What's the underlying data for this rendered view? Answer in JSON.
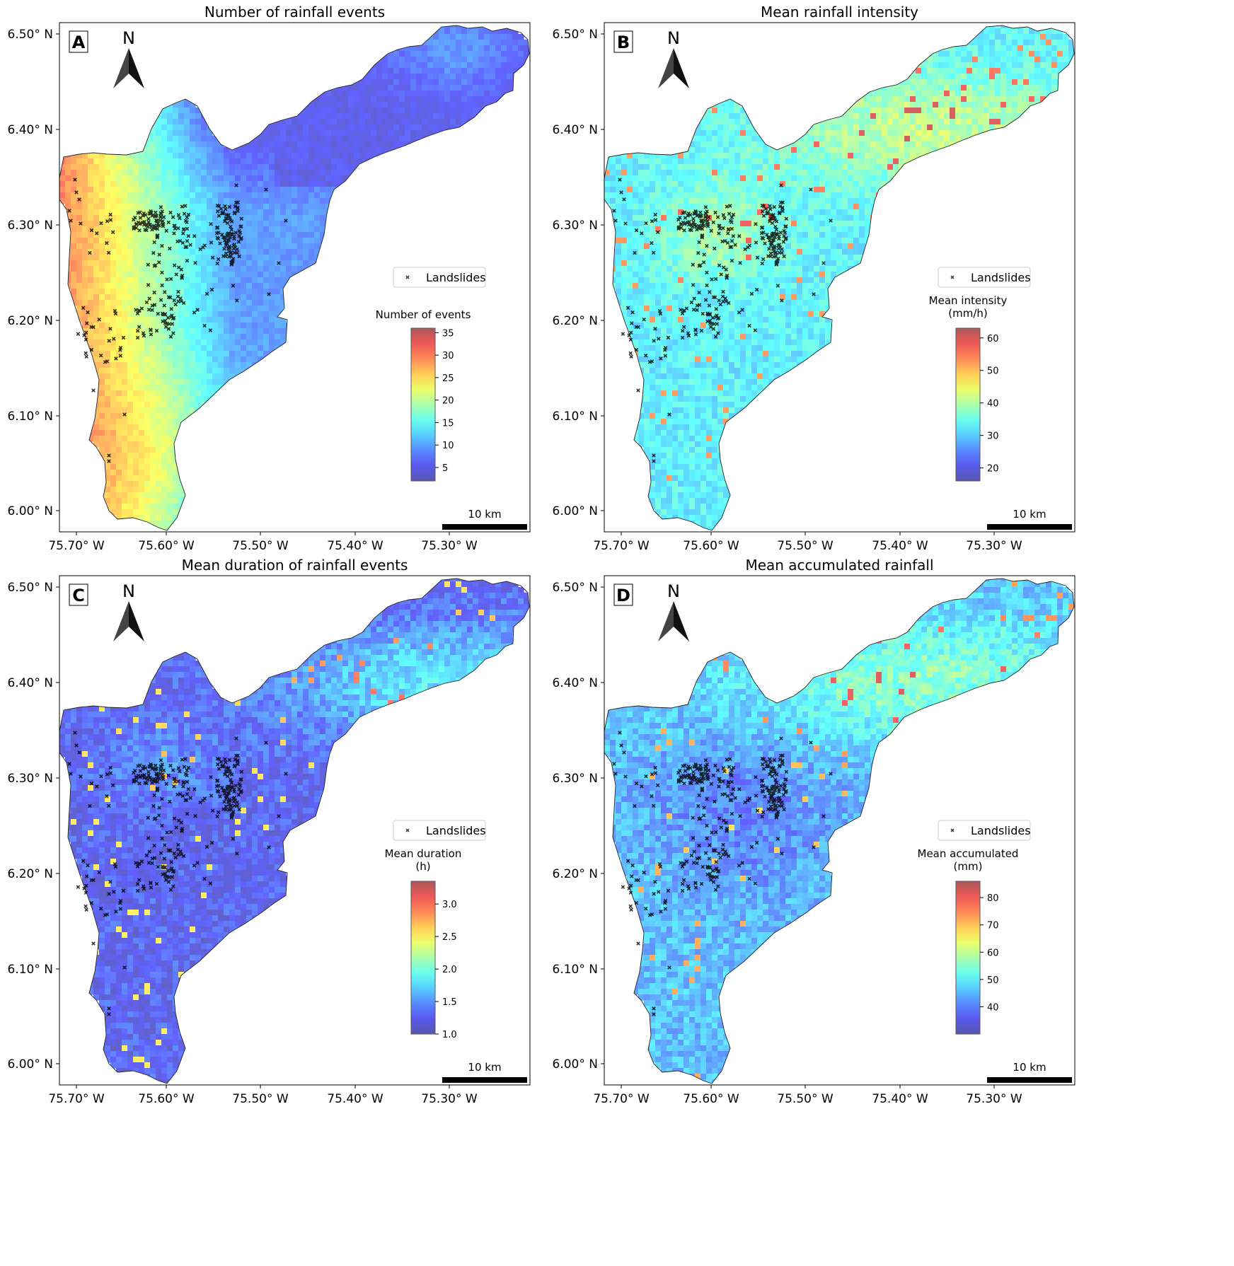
{
  "panels": [
    {
      "letter": "A",
      "title": "Number of rainfall events",
      "legend_label": "Landslides",
      "colorbar_title_lines": [
        "Number of events"
      ],
      "colorbar_ticks": [
        "5",
        "10",
        "15",
        "20",
        "25",
        "30",
        "35"
      ],
      "colorbar_range": [
        2,
        36
      ],
      "scale_label": "10 km",
      "north_label": "N",
      "field": "events"
    },
    {
      "letter": "B",
      "title": "Mean rainfall intensity",
      "legend_label": "Landslides",
      "colorbar_title_lines": [
        "Mean intensity",
        "(mm/h)"
      ],
      "colorbar_ticks": [
        "20",
        "30",
        "40",
        "50",
        "60"
      ],
      "colorbar_range": [
        16,
        63
      ],
      "scale_label": "10 km",
      "north_label": "N",
      "field": "intensity"
    },
    {
      "letter": "C",
      "title": "Mean duration of rainfall events",
      "legend_label": "Landslides",
      "colorbar_title_lines": [
        "Mean duration",
        "(h)"
      ],
      "colorbar_ticks": [
        "1.0",
        "1.5",
        "2.0",
        "2.5",
        "3.0"
      ],
      "colorbar_range": [
        1.0,
        3.35
      ],
      "scale_label": "10 km",
      "north_label": "N",
      "field": "duration"
    },
    {
      "letter": "D",
      "title": "Mean accumulated rainfall",
      "legend_label": "Landslides",
      "colorbar_title_lines": [
        "Mean accumulated",
        "(mm)"
      ],
      "colorbar_ticks": [
        "40",
        "50",
        "60",
        "70",
        "80"
      ],
      "colorbar_range": [
        30,
        86
      ],
      "scale_label": "10 km",
      "north_label": "N",
      "field": "accumulated"
    }
  ],
  "axes": {
    "lat_ticks": [
      "6.00° N",
      "6.10° N",
      "6.20° N",
      "6.30° N",
      "6.40° N",
      "6.50° N"
    ],
    "lon_ticks": [
      "75.70° W",
      "75.60° W",
      "75.50° W",
      "75.40° W",
      "75.30° W"
    ]
  },
  "colors": {
    "colormap": "jet",
    "landslide_marker": "#000000",
    "scalebar": "#000000",
    "frame": "#000000"
  }
}
